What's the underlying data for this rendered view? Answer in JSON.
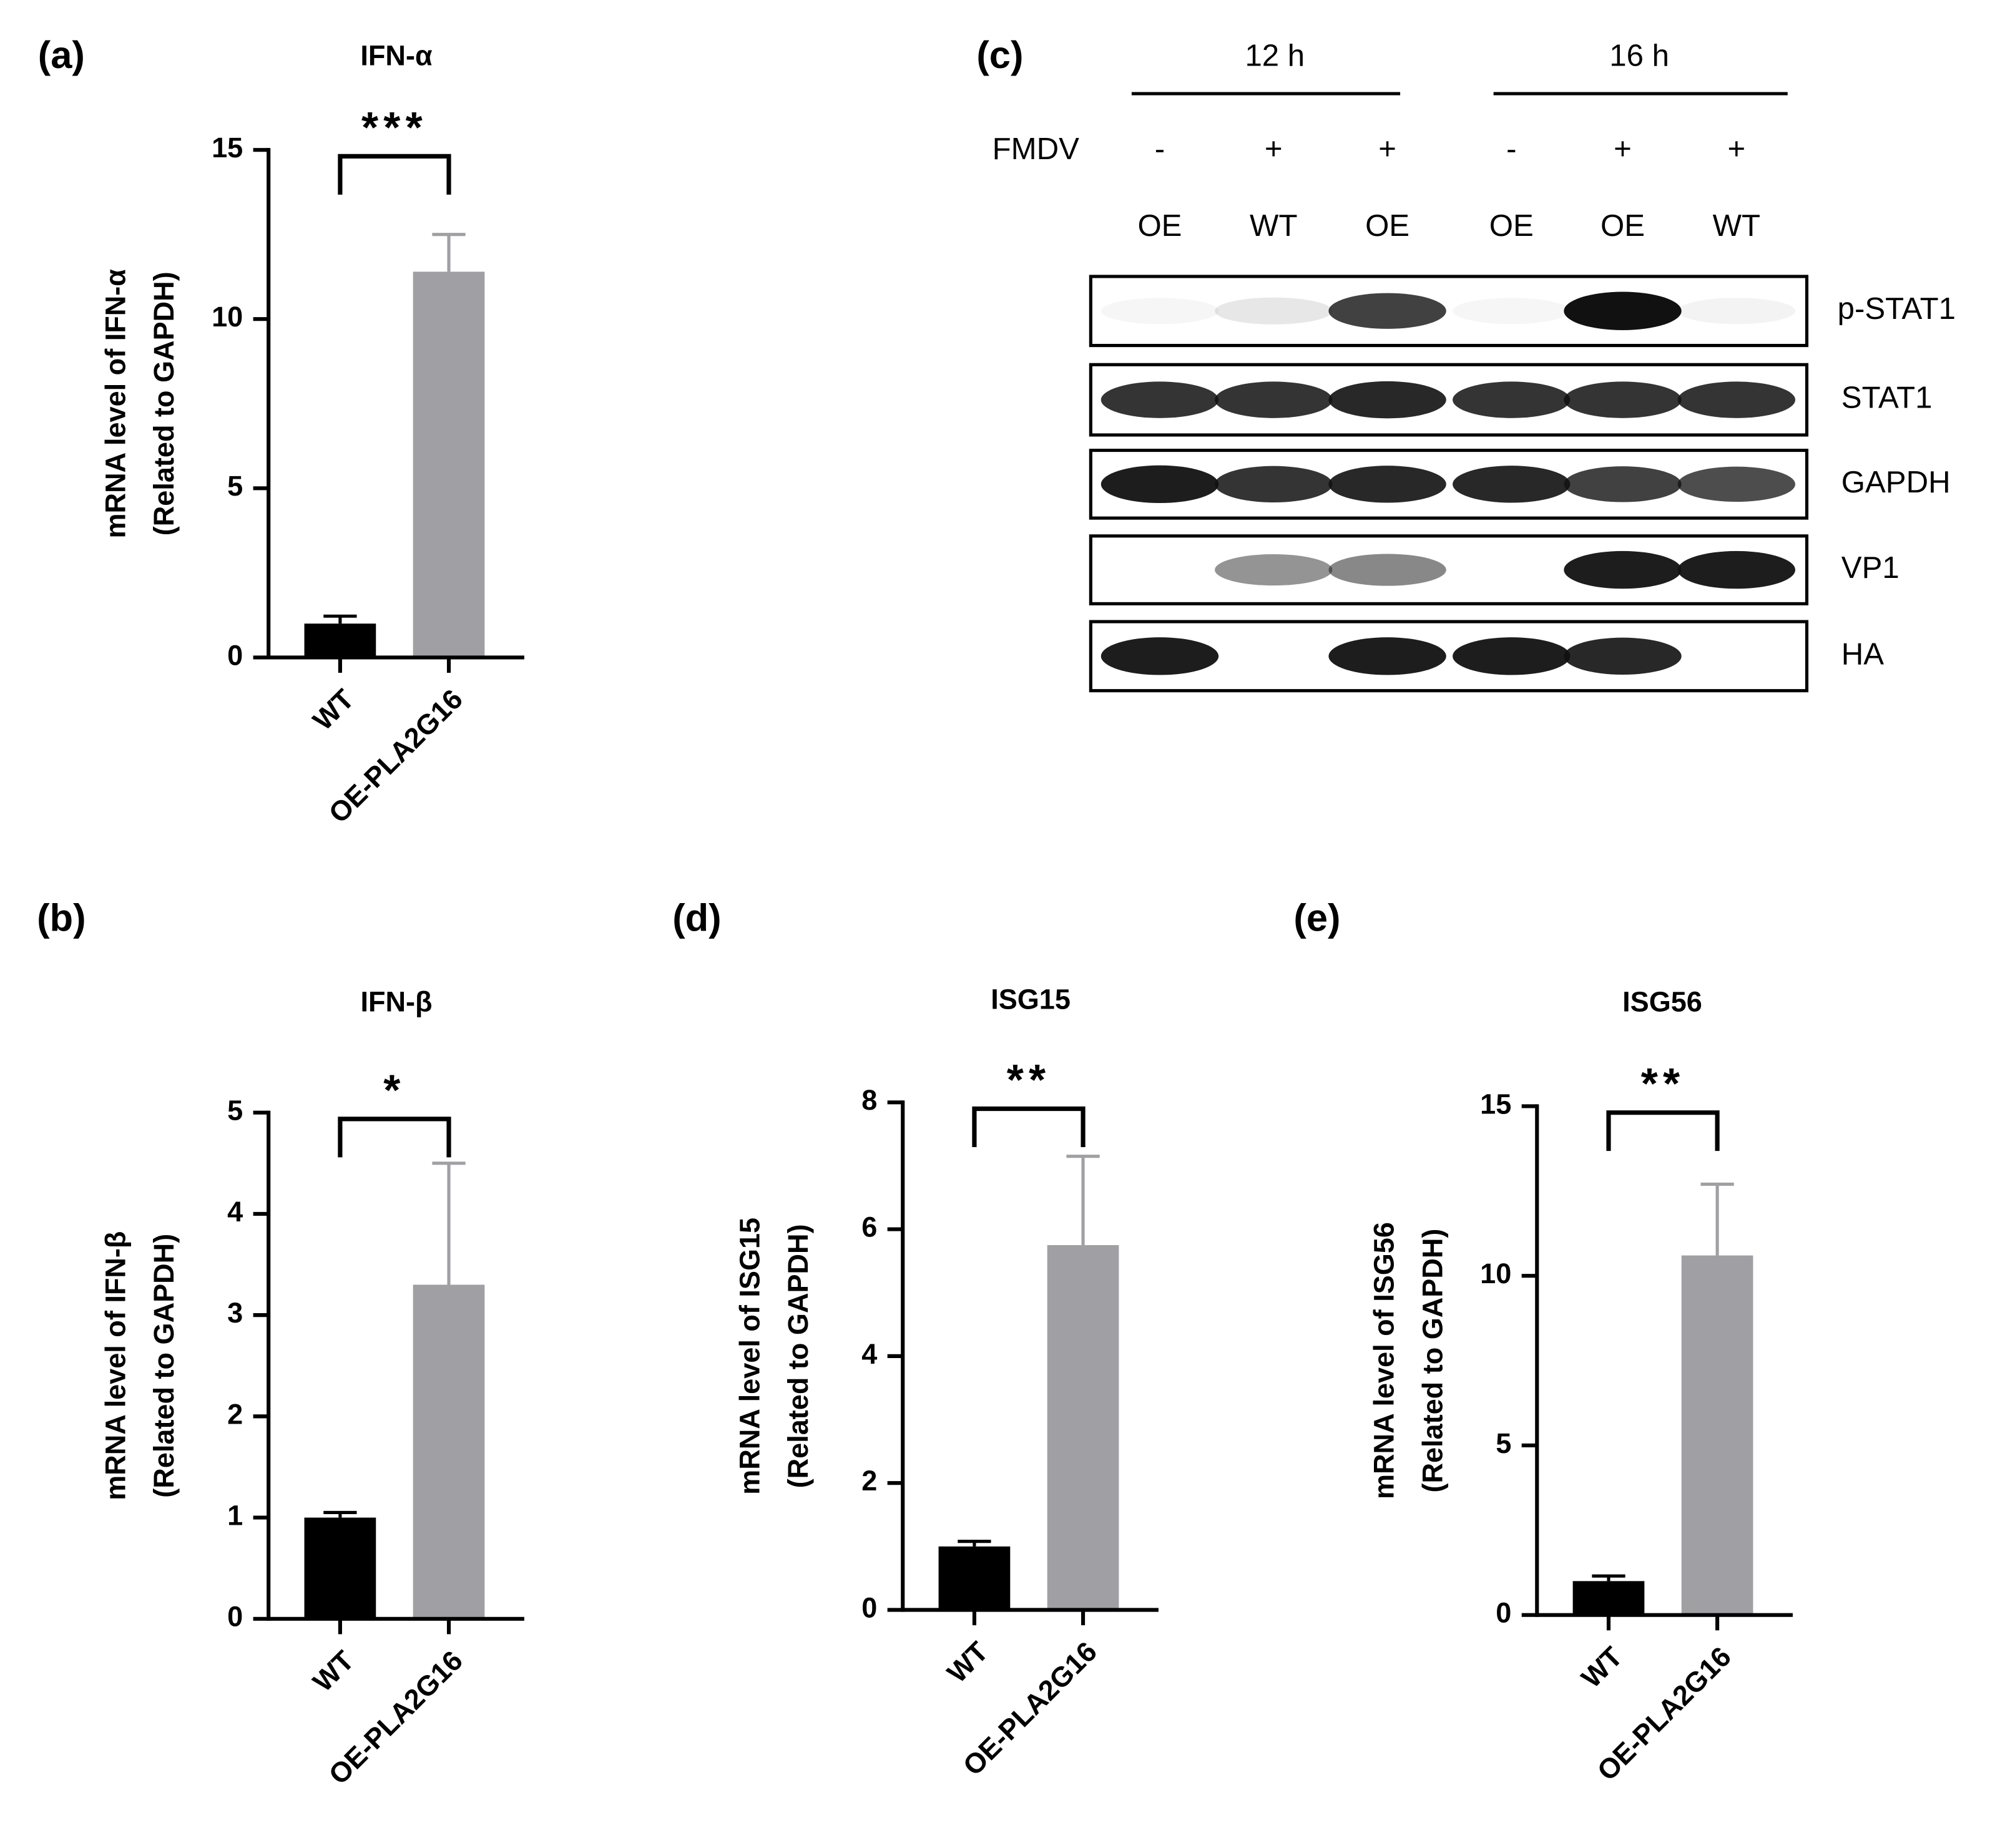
{
  "chart_data": [
    {
      "type": "bar",
      "panel_label": "(a)",
      "title": "IFN-α",
      "ylabel": [
        "mRNA level of IFN-α",
        "(Related to GAPDH)"
      ],
      "categories": [
        "WT",
        "OE-PLA2G16"
      ],
      "values": [
        1.0,
        11.4
      ],
      "errors": [
        0.22,
        1.1
      ],
      "colors": [
        "#000000",
        "#a0a0a4"
      ],
      "ylim": [
        0,
        15
      ],
      "yticks": [
        0,
        5,
        10,
        15
      ],
      "annotation": "***"
    },
    {
      "type": "bar",
      "panel_label": "(b)",
      "title": "IFN-β",
      "ylabel": [
        "mRNA level of IFN-β",
        "(Related to GAPDH)"
      ],
      "categories": [
        "WT",
        "OE-PLA2G16"
      ],
      "values": [
        1.0,
        3.3
      ],
      "errors": [
        0.05,
        1.2
      ],
      "colors": [
        "#000000",
        "#a0a0a4"
      ],
      "ylim": [
        0,
        5
      ],
      "yticks": [
        0,
        1,
        2,
        3,
        4,
        5
      ],
      "annotation": "*"
    },
    {
      "type": "bar",
      "panel_label": "(d)",
      "title": "ISG15",
      "ylabel": [
        "mRNA level of ISG15",
        "(Related to GAPDH)"
      ],
      "categories": [
        "WT",
        "OE-PLA2G16"
      ],
      "values": [
        1.0,
        5.75
      ],
      "errors": [
        0.08,
        1.4
      ],
      "colors": [
        "#000000",
        "#a0a0a4"
      ],
      "ylim": [
        0,
        8
      ],
      "yticks": [
        0,
        2,
        4,
        6,
        8
      ],
      "annotation": "**"
    },
    {
      "type": "bar",
      "panel_label": "(e)",
      "title": "ISG56",
      "ylabel": [
        "mRNA level of ISG56",
        "(Related to GAPDH)"
      ],
      "categories": [
        "WT",
        "OE-PLA2G16"
      ],
      "values": [
        1.0,
        10.6
      ],
      "errors": [
        0.15,
        2.1
      ],
      "colors": [
        "#000000",
        "#a0a0a4"
      ],
      "ylim": [
        0,
        15
      ],
      "yticks": [
        0,
        5,
        10,
        15
      ],
      "annotation": "**"
    }
  ],
  "blot": {
    "panel_label": "(c)",
    "time_groups": [
      "12 h",
      "16 h"
    ],
    "treatment_label": "FMDV",
    "treatment": [
      "-",
      "+",
      "+",
      "-",
      "+",
      "+"
    ],
    "samples": [
      "OE",
      "WT",
      "OE",
      "OE",
      "OE",
      "WT"
    ],
    "bands": [
      "p-STAT1",
      "STAT1",
      "GAPDH",
      "VP1",
      "HA"
    ]
  }
}
